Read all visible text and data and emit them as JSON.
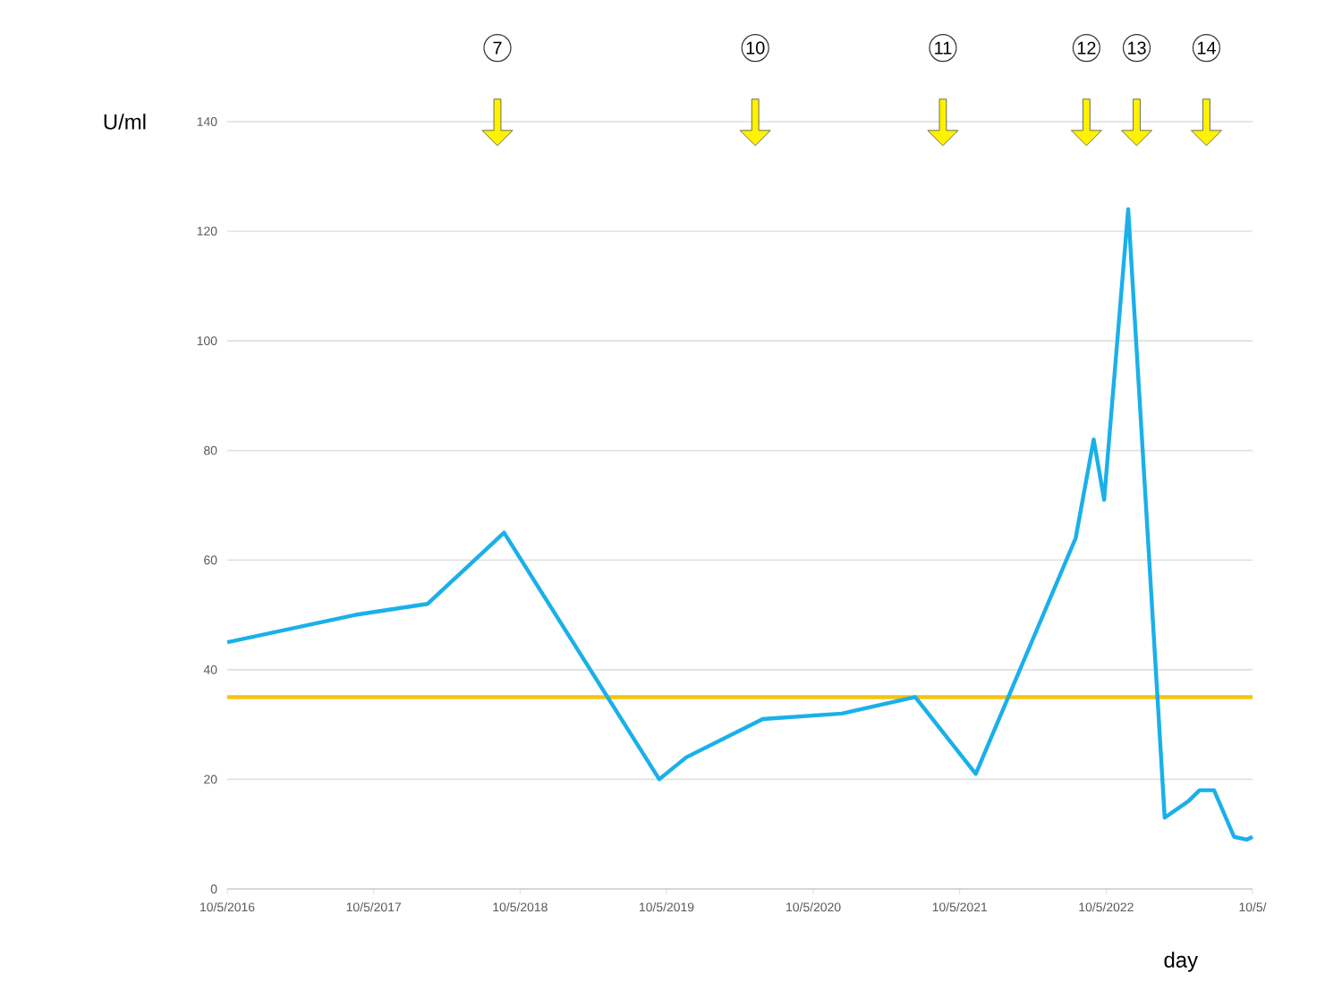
{
  "chart_data": {
    "type": "line",
    "xlabel": "day",
    "ylabel": "U/ml",
    "x": [
      "2016-10-05",
      "2017-08-20",
      "2018-02-16",
      "2018-08-26",
      "2019-09-17",
      "2019-11-23",
      "2020-06-01",
      "2020-12-15",
      "2021-06-16",
      "2021-11-14",
      "2022-07-21",
      "2022-09-04",
      "2022-09-30",
      "2022-11-29",
      "2023-02-28",
      "2023-04-28",
      "2023-05-26",
      "2023-07-01",
      "2023-08-20",
      "2023-09-21",
      "2023-10-05"
    ],
    "series": [
      {
        "color": "#1ab0ea",
        "values": [
          45,
          50,
          52,
          65,
          20,
          24,
          31,
          32,
          35,
          21,
          64,
          82,
          71,
          124,
          13,
          16,
          18,
          18,
          9.5,
          9,
          9.5
        ]
      }
    ],
    "xlim": [
      "2016-10-05",
      "2023-10-05"
    ],
    "xticks": [
      {
        "value": "2016-10-05",
        "label": "10/5/2016"
      },
      {
        "value": "2017-10-05",
        "label": "10/5/2017"
      },
      {
        "value": "2018-10-05",
        "label": "10/5/2018"
      },
      {
        "value": "2019-10-05",
        "label": "10/5/2019"
      },
      {
        "value": "2020-10-05",
        "label": "10/5/2020"
      },
      {
        "value": "2021-10-05",
        "label": "10/5/2021"
      },
      {
        "value": "2022-10-05",
        "label": "10/5/2022"
      },
      {
        "value": "2023-10-05",
        "label": "10/5/"
      }
    ],
    "ylim": [
      0,
      140
    ],
    "yticks": [
      0,
      20,
      40,
      60,
      80,
      100,
      120,
      140
    ],
    "grid": "y",
    "marker": "none",
    "line_style": "solid",
    "ref_lines": [
      {
        "axis": "y",
        "value": 35,
        "color": "#f5c40f"
      }
    ],
    "annotations": [
      "7",
      "10",
      "11",
      "12",
      "13",
      "14"
    ]
  }
}
